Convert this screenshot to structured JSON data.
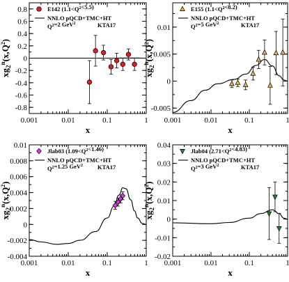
{
  "axes": {
    "x_tick_labels": [
      "0.001",
      "0.01",
      "0.1",
      "1"
    ],
    "xlabel": "x",
    "ylabel": "xg",
    "ylabel_sub": "2",
    "ylabel_sup": "n",
    "ylabel_tail": "(x,Q",
    "ylabel_tail_sup": "2",
    "ylabel_end": ")"
  },
  "chart_data": [
    {
      "type": "scatter",
      "panel": "top-left",
      "xscale": "log",
      "xlim": [
        0.001,
        1
      ],
      "ylim": [
        -0.9,
        0.9
      ],
      "yticks": [
        -0.8,
        -0.6,
        -0.4,
        -0.2,
        0,
        0.2,
        0.4,
        0.6,
        0.8
      ],
      "ytick_labels": [
        "-0.8",
        "-0.6",
        "-0.4",
        "-0.2",
        "0",
        "0.2",
        "0.4",
        "0.6",
        "0.8"
      ],
      "legend": {
        "data_label": "E142 (1.1<Q²<5.5)",
        "curve_label": "NNLO pQCD+TMC+HT",
        "model_label": "KTA17",
        "q2_label": "Q²=2 GeV²"
      },
      "marker": {
        "shape": "circle",
        "color": "#d92020"
      },
      "data": {
        "x": [
          0.035,
          0.05,
          0.08,
          0.125,
          0.175,
          0.25,
          0.35,
          0.5
        ],
        "y": [
          -0.39,
          0.12,
          0.09,
          -0.14,
          -0.04,
          -0.1,
          0.06,
          -0.1
        ],
        "err": [
          0.35,
          0.25,
          0.12,
          0.12,
          0.12,
          0.1,
          0.09,
          0.1
        ]
      },
      "curve": {
        "x": [
          0.001,
          0.01,
          0.1,
          0.3,
          0.6,
          1.0
        ],
        "y": [
          0,
          0,
          0,
          0.002,
          0.002,
          0
        ]
      }
    },
    {
      "type": "scatter",
      "panel": "top-right",
      "xscale": "log",
      "xlim": [
        0.001,
        1
      ],
      "ylim": [
        -0.006,
        0.0145
      ],
      "yticks": [
        -0.005,
        0,
        0.005,
        0.01
      ],
      "ytick_labels": [
        "-0.005",
        "0",
        "0.005",
        "0.01"
      ],
      "legend": {
        "data_label": "E155 (1.1<Q²<8.2)",
        "curve_label": "NNLO pQCD+TMC+HT",
        "model_label": "KTA17",
        "q2_label": "Q²=5 GeV²"
      },
      "marker": {
        "shape": "triangle-up",
        "color": "#e8b04a"
      },
      "data": {
        "x": [
          0.035,
          0.05,
          0.08,
          0.125,
          0.175,
          0.25,
          0.35,
          0.5,
          0.75
        ],
        "y": [
          -0.0005,
          -0.0003,
          -0.0007,
          0.0014,
          0.004,
          0.0053,
          -0.0008,
          0.0052,
          0.0053
        ],
        "err": [
          0.0007,
          0.0007,
          0.0009,
          0.0012,
          0.0017,
          0.0023,
          0.0035,
          0.004,
          0.0062
        ]
      },
      "curve": {
        "x": [
          0.001,
          0.003,
          0.007,
          0.015,
          0.04,
          0.08,
          0.15,
          0.25,
          0.4,
          0.6,
          0.8,
          1.0
        ],
        "y": [
          -0.0058,
          -0.0036,
          -0.0017,
          -0.0005,
          0.0003,
          0.0013,
          0.0029,
          0.004,
          0.0028,
          0.001,
          0.0002,
          0
        ]
      }
    },
    {
      "type": "scatter",
      "panel": "bottom-left",
      "xscale": "log",
      "xlim": [
        0.001,
        1
      ],
      "ylim": [
        -0.004,
        0.01
      ],
      "yticks": [
        -0.004,
        -0.002,
        0,
        0.002,
        0.004,
        0.006,
        0.008,
        0.01
      ],
      "ytick_labels": [
        "-0.004",
        "-0.002",
        "0",
        "0.002",
        "0.004",
        "0.006",
        "0.008",
        "0.01"
      ],
      "legend": {
        "data_label": "Jlab03 (1.09<Q²<1.46)",
        "curve_label": "NNLO pQCD+TMC+HT",
        "model_label": "KTA17",
        "q2_label": "Q²=1.25 GeV²"
      },
      "marker": {
        "shape": "diamond",
        "color": "#d63be0"
      },
      "data": {
        "x": [
          0.16,
          0.19,
          0.22,
          0.25
        ],
        "y": [
          0.0024,
          0.0028,
          0.0032,
          0.0036
        ],
        "err": [
          0.0005,
          0.0005,
          0.0005,
          0.0005
        ]
      },
      "curve": {
        "x": [
          0.001,
          0.002,
          0.005,
          0.01,
          0.02,
          0.05,
          0.1,
          0.15,
          0.2,
          0.25,
          0.3,
          0.4,
          0.5,
          0.6,
          0.8,
          1.0
        ],
        "y": [
          -0.0019,
          -0.0022,
          -0.0025,
          -0.0024,
          -0.002,
          -0.0009,
          0.0008,
          0.0023,
          0.0037,
          0.0046,
          0.0045,
          0.0031,
          0.0017,
          0.0008,
          0.0001,
          0
        ]
      }
    },
    {
      "type": "scatter",
      "panel": "bottom-right",
      "xscale": "log",
      "xlim": [
        0.001,
        1
      ],
      "ylim": [
        -0.02,
        0.04
      ],
      "yticks": [
        -0.02,
        -0.01,
        0,
        0.01,
        0.02,
        0.03,
        0.04
      ],
      "ytick_labels": [
        "-0.02",
        "-0.01",
        "0",
        "0.01",
        "0.02",
        "0.03",
        "0.04"
      ],
      "legend": {
        "data_label": "Jlab04 (2.71<Q²<4.83)",
        "curve_label": "NNLO pQCD+TMC+HT",
        "model_label": "KTA17",
        "q2_label": "Q²=3 GeV²"
      },
      "marker": {
        "shape": "triangle-down",
        "color": "#1a8a3a"
      },
      "data": {
        "x": [
          0.33,
          0.47,
          0.6
        ],
        "y": [
          0.003,
          0.012,
          -0.005
        ],
        "err": [
          0.014,
          0.008,
          0.008
        ]
      },
      "curve": {
        "x": [
          0.001,
          0.01,
          0.03,
          0.1,
          0.2,
          0.4,
          0.6,
          0.8,
          1.0
        ],
        "y": [
          -0.002,
          -0.0025,
          -0.0018,
          0.0005,
          0.003,
          0.005,
          0.003,
          0.0005,
          0
        ]
      }
    }
  ]
}
